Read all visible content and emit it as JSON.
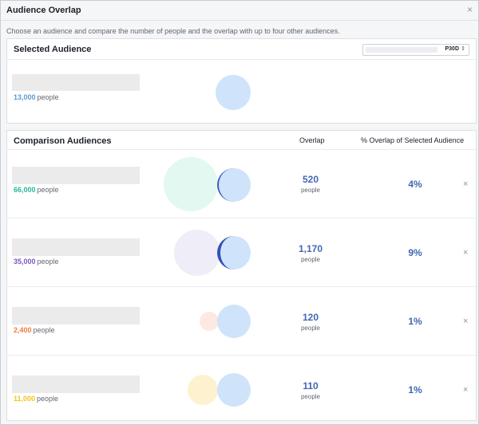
{
  "dialog": {
    "title": "Audience Overlap",
    "close_glyph": "×",
    "subtitle": "Choose an audience and compare the number of people and the overlap with up to four other audiences."
  },
  "selected": {
    "header": "Selected Audience",
    "range_value": "P30D",
    "range_chevron": "⇕",
    "count": "13,000",
    "unit": "people",
    "color": "#5b9bd5"
  },
  "comparison": {
    "header": "Comparison Audiences",
    "col_overlap": "Overlap",
    "col_pct": "% Overlap of Selected Audience",
    "remove_glyph": "×",
    "rows": [
      {
        "count": "66,000",
        "unit": "people",
        "overlap": "520",
        "overlap_unit": "people",
        "pct": "4%",
        "color": "#26b99a"
      },
      {
        "count": "35,000",
        "unit": "people",
        "overlap": "1,170",
        "overlap_unit": "people",
        "pct": "9%",
        "color": "#7e57c2"
      },
      {
        "count": "2,400",
        "unit": "people",
        "overlap": "120",
        "overlap_unit": "people",
        "pct": "1%",
        "color": "#f07b3f"
      },
      {
        "count": "11,000",
        "unit": "people",
        "overlap": "110",
        "overlap_unit": "people",
        "pct": "1%",
        "color": "#f5c518"
      }
    ]
  },
  "colors": {
    "overlap_blue": "#4267b2",
    "selected_circle": "#cfe3fb",
    "circle_fills": [
      "#e2f8f1",
      "#efedf7",
      "#fde9e2",
      "#fdf1cf"
    ]
  }
}
